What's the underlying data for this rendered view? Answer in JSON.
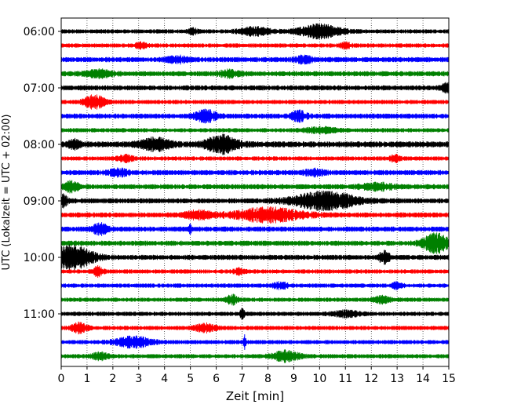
{
  "chart_data": {
    "type": "line",
    "title": "",
    "xlabel": "Zeit  [min]",
    "ylabel": "UTC (Lokalzeit = UTC + 02:00)",
    "xlim": [
      0,
      15
    ],
    "x_ticks": [
      "0",
      "1",
      "2",
      "3",
      "4",
      "5",
      "6",
      "7",
      "8",
      "9",
      "10",
      "11",
      "12",
      "13",
      "14",
      "15"
    ],
    "y_tick_labels": [
      "06:00",
      "07:00",
      "08:00",
      "09:00",
      "10:00",
      "11:00"
    ],
    "grid": "vertical dotted lines at each minute",
    "trace_interval_minutes": 15,
    "traces": [
      {
        "start": "06:00",
        "color": "#000000",
        "amplitude": 0.25,
        "events": [
          {
            "t": 5.1,
            "amp": 0.35,
            "width": 0.15
          },
          {
            "t": 7.5,
            "amp": 0.4,
            "width": 0.6
          },
          {
            "t": 10.0,
            "amp": 0.7,
            "width": 0.8
          }
        ]
      },
      {
        "start": "06:15",
        "color": "#ff0000",
        "amplitude": 0.25,
        "events": [
          {
            "t": 3.1,
            "amp": 0.3,
            "width": 0.2
          },
          {
            "t": 11.0,
            "amp": 0.3,
            "width": 0.2
          }
        ]
      },
      {
        "start": "06:30",
        "color": "#0000ff",
        "amplitude": 0.3,
        "events": [
          {
            "t": 4.5,
            "amp": 0.3,
            "width": 0.4
          },
          {
            "t": 9.4,
            "amp": 0.35,
            "width": 0.3
          }
        ]
      },
      {
        "start": "06:45",
        "color": "#008000",
        "amplitude": 0.3,
        "events": [
          {
            "t": 1.5,
            "amp": 0.35,
            "width": 0.5
          },
          {
            "t": 6.5,
            "amp": 0.3,
            "width": 0.4
          }
        ]
      },
      {
        "start": "07:00",
        "color": "#000000",
        "amplitude": 0.3,
        "events": [
          {
            "t": 14.9,
            "amp": 0.4,
            "width": 0.2
          }
        ]
      },
      {
        "start": "07:15",
        "color": "#ff0000",
        "amplitude": 0.25,
        "events": [
          {
            "t": 1.3,
            "amp": 0.7,
            "width": 0.4
          }
        ]
      },
      {
        "start": "07:30",
        "color": "#0000ff",
        "amplitude": 0.3,
        "events": [
          {
            "t": 5.6,
            "amp": 0.6,
            "width": 0.4
          },
          {
            "t": 9.2,
            "amp": 0.5,
            "width": 0.3
          }
        ]
      },
      {
        "start": "07:45",
        "color": "#008000",
        "amplitude": 0.25,
        "events": [
          {
            "t": 10.0,
            "amp": 0.3,
            "width": 0.6
          }
        ]
      },
      {
        "start": "08:00",
        "color": "#000000",
        "amplitude": 0.35,
        "events": [
          {
            "t": 0.5,
            "amp": 0.5,
            "width": 0.2
          },
          {
            "t": 3.6,
            "amp": 0.6,
            "width": 0.6
          },
          {
            "t": 6.2,
            "amp": 0.9,
            "width": 0.6
          }
        ]
      },
      {
        "start": "08:15",
        "color": "#ff0000",
        "amplitude": 0.25,
        "events": [
          {
            "t": 2.5,
            "amp": 0.3,
            "width": 0.3
          },
          {
            "t": 12.9,
            "amp": 0.35,
            "width": 0.2
          }
        ]
      },
      {
        "start": "08:30",
        "color": "#0000ff",
        "amplitude": 0.3,
        "events": [
          {
            "t": 2.2,
            "amp": 0.35,
            "width": 0.4
          },
          {
            "t": 9.8,
            "amp": 0.3,
            "width": 0.4
          }
        ]
      },
      {
        "start": "08:45",
        "color": "#008000",
        "amplitude": 0.3,
        "events": [
          {
            "t": 0.4,
            "amp": 0.5,
            "width": 0.3
          },
          {
            "t": 12.2,
            "amp": 0.35,
            "width": 0.6
          }
        ]
      },
      {
        "start": "09:00",
        "color": "#000000",
        "amplitude": 0.3,
        "events": [
          {
            "t": 0.1,
            "amp": 0.6,
            "width": 0.15
          },
          {
            "t": 10.2,
            "amp": 1.0,
            "width": 1.2
          }
        ]
      },
      {
        "start": "09:15",
        "color": "#ff0000",
        "amplitude": 0.3,
        "events": [
          {
            "t": 5.3,
            "amp": 0.4,
            "width": 0.5
          },
          {
            "t": 8.0,
            "amp": 0.7,
            "width": 1.3
          }
        ]
      },
      {
        "start": "09:30",
        "color": "#0000ff",
        "amplitude": 0.3,
        "events": [
          {
            "t": 1.5,
            "amp": 0.55,
            "width": 0.3
          },
          {
            "t": 5.0,
            "amp": 0.5,
            "width": 0.05
          }
        ]
      },
      {
        "start": "09:45",
        "color": "#008000",
        "amplitude": 0.3,
        "events": [
          {
            "t": 14.5,
            "amp": 1.0,
            "width": 0.5
          }
        ]
      },
      {
        "start": "10:00",
        "color": "#000000",
        "amplitude": 0.3,
        "events": [
          {
            "t": 0.4,
            "amp": 1.3,
            "width": 0.8
          },
          {
            "t": 12.5,
            "amp": 0.6,
            "width": 0.2
          }
        ]
      },
      {
        "start": "10:15",
        "color": "#ff0000",
        "amplitude": 0.25,
        "events": [
          {
            "t": 1.4,
            "amp": 0.5,
            "width": 0.2
          },
          {
            "t": 6.9,
            "amp": 0.3,
            "width": 0.2
          }
        ]
      },
      {
        "start": "10:30",
        "color": "#0000ff",
        "amplitude": 0.25,
        "events": [
          {
            "t": 8.5,
            "amp": 0.3,
            "width": 0.3
          },
          {
            "t": 13.0,
            "amp": 0.35,
            "width": 0.2
          }
        ]
      },
      {
        "start": "10:45",
        "color": "#008000",
        "amplitude": 0.25,
        "events": [
          {
            "t": 6.6,
            "amp": 0.5,
            "width": 0.2
          },
          {
            "t": 12.4,
            "amp": 0.4,
            "width": 0.3
          }
        ]
      },
      {
        "start": "11:00",
        "color": "#000000",
        "amplitude": 0.25,
        "events": [
          {
            "t": 7.0,
            "amp": 0.5,
            "width": 0.1
          },
          {
            "t": 11.0,
            "amp": 0.3,
            "width": 0.5
          }
        ]
      },
      {
        "start": "11:15",
        "color": "#ff0000",
        "amplitude": 0.25,
        "events": [
          {
            "t": 0.7,
            "amp": 0.55,
            "width": 0.3
          },
          {
            "t": 5.6,
            "amp": 0.4,
            "width": 0.4
          }
        ]
      },
      {
        "start": "11:30",
        "color": "#0000ff",
        "amplitude": 0.25,
        "events": [
          {
            "t": 2.8,
            "amp": 0.55,
            "width": 0.7
          },
          {
            "t": 7.1,
            "amp": 0.7,
            "width": 0.05
          }
        ]
      },
      {
        "start": "11:45",
        "color": "#008000",
        "amplitude": 0.25,
        "events": [
          {
            "t": 1.5,
            "amp": 0.35,
            "width": 0.3
          },
          {
            "t": 8.7,
            "amp": 0.55,
            "width": 0.5
          }
        ]
      }
    ]
  }
}
